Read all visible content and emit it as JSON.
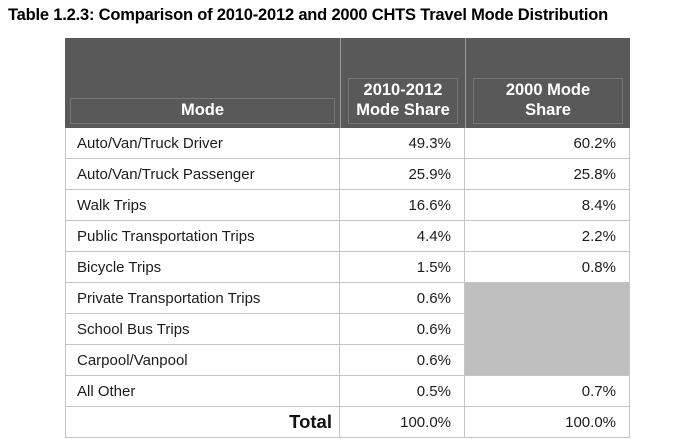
{
  "title": "Table 1.2.3: Comparison of 2010-2012 and 2000 CHTS Travel Mode Distribution",
  "table": {
    "columns": [
      "Mode",
      "2010-2012 Mode Share",
      "2000 Mode Share"
    ],
    "header": {
      "mode_label": "Mode",
      "col2010_line1": "2010-2012",
      "col2010_line2": "Mode Share",
      "col2000_line1": "2000 Mode",
      "col2000_line2": "Share"
    },
    "rows": [
      {
        "mode": "Auto/Van/Truck Driver",
        "share_2010_2012": "49.3%",
        "share_2000": "60.2%"
      },
      {
        "mode": "Auto/Van/Truck Passenger",
        "share_2010_2012": "25.9%",
        "share_2000": "25.8%"
      },
      {
        "mode": "Walk Trips",
        "share_2010_2012": "16.6%",
        "share_2000": "8.4%"
      },
      {
        "mode": "Public Transportation Trips",
        "share_2010_2012": "4.4%",
        "share_2000": "2.2%"
      },
      {
        "mode": "Bicycle Trips",
        "share_2010_2012": "1.5%",
        "share_2000": "0.8%"
      },
      {
        "mode": "Private Transportation Trips",
        "share_2010_2012": "0.6%",
        "share_2000": null
      },
      {
        "mode": "School Bus Trips",
        "share_2010_2012": "0.6%",
        "share_2000": null
      },
      {
        "mode": "Carpool/Vanpool",
        "share_2010_2012": "0.6%",
        "share_2000": null
      },
      {
        "mode": "All Other",
        "share_2010_2012": "0.5%",
        "share_2000": "0.7%"
      }
    ],
    "total_row": {
      "label": "Total",
      "share_2010_2012": "100.0%",
      "share_2000": "100.0%"
    }
  },
  "colors": {
    "header_bg": "#595959",
    "header_text": "#ffffff",
    "merged_empty_cell": "#bfbfbf",
    "row_border": "#c4c4c4"
  }
}
